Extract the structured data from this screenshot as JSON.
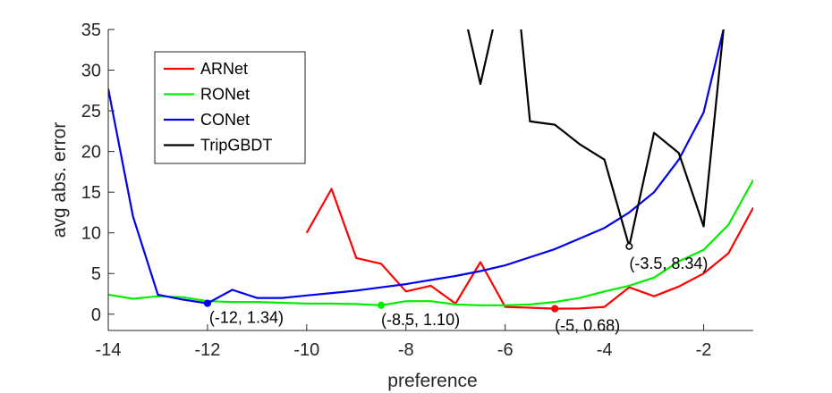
{
  "chart_data": {
    "type": "line",
    "xlabel": "preference",
    "ylabel": "avg abs. error",
    "xlim": [
      -14,
      -1
    ],
    "ylim": [
      -2,
      35
    ],
    "xticks": [
      -14,
      -12,
      -10,
      -8,
      -6,
      -4,
      -2
    ],
    "xtick_labels": [
      "-14",
      "-12",
      "-10",
      "-8",
      "-6",
      "-4",
      "-2"
    ],
    "yticks": [
      0,
      5,
      10,
      15,
      20,
      25,
      30,
      35
    ],
    "ytick_labels": [
      "0",
      "5",
      "10",
      "15",
      "20",
      "25",
      "30",
      "35"
    ],
    "grid": false,
    "legend_position": "top-left",
    "series": [
      {
        "name": "ARNet",
        "color": "#ff0000",
        "points": [
          [
            -10,
            10.0
          ],
          [
            -9.5,
            15.4
          ],
          [
            -9,
            6.9
          ],
          [
            -8.5,
            6.2
          ],
          [
            -8,
            2.8
          ],
          [
            -7.5,
            3.5
          ],
          [
            -7,
            1.3
          ],
          [
            -6.5,
            6.4
          ],
          [
            -6,
            0.9
          ],
          [
            -5.5,
            0.8
          ],
          [
            -5,
            0.68
          ],
          [
            -4.5,
            0.7
          ],
          [
            -4,
            0.9
          ],
          [
            -3.5,
            3.3
          ],
          [
            -3,
            2.2
          ],
          [
            -2.5,
            3.4
          ],
          [
            -2,
            5.0
          ],
          [
            -1.5,
            7.5
          ],
          [
            -1,
            13.1
          ]
        ]
      },
      {
        "name": "RONet",
        "color": "#00ee00",
        "points": [
          [
            -14,
            2.4
          ],
          [
            -13.5,
            1.9
          ],
          [
            -13,
            2.2
          ],
          [
            -12.5,
            2.1
          ],
          [
            -12,
            1.6
          ],
          [
            -11.5,
            1.5
          ],
          [
            -11,
            1.5
          ],
          [
            -10.5,
            1.4
          ],
          [
            -10,
            1.3
          ],
          [
            -9.5,
            1.3
          ],
          [
            -9,
            1.25
          ],
          [
            -8.5,
            1.1
          ],
          [
            -8,
            1.6
          ],
          [
            -7.5,
            1.6
          ],
          [
            -7,
            1.2
          ],
          [
            -6.5,
            1.1
          ],
          [
            -6,
            1.1
          ],
          [
            -5.5,
            1.2
          ],
          [
            -5,
            1.5
          ],
          [
            -4.5,
            2.0
          ],
          [
            -4,
            2.8
          ],
          [
            -3.5,
            3.5
          ],
          [
            -3,
            4.5
          ],
          [
            -2.5,
            6.5
          ],
          [
            -2,
            7.9
          ],
          [
            -1.5,
            11.0
          ],
          [
            -1,
            16.5
          ]
        ]
      },
      {
        "name": "CONet",
        "color": "#0000ee",
        "points": [
          [
            -14,
            27.7
          ],
          [
            -13.5,
            12.0
          ],
          [
            -13,
            2.4
          ],
          [
            -12.5,
            1.8
          ],
          [
            -12,
            1.34
          ],
          [
            -11.5,
            3.0
          ],
          [
            -11,
            2.0
          ],
          [
            -10.5,
            2.0
          ],
          [
            -10,
            2.3
          ],
          [
            -9.5,
            2.6
          ],
          [
            -9,
            2.9
          ],
          [
            -8.5,
            3.3
          ],
          [
            -8,
            3.7
          ],
          [
            -7.5,
            4.2
          ],
          [
            -7,
            4.7
          ],
          [
            -6.5,
            5.3
          ],
          [
            -6,
            6.0
          ],
          [
            -5.5,
            7.0
          ],
          [
            -5,
            8.0
          ],
          [
            -4.5,
            9.3
          ],
          [
            -4,
            10.6
          ],
          [
            -3.5,
            12.5
          ],
          [
            -3,
            15.0
          ],
          [
            -2.5,
            19.0
          ],
          [
            -2,
            24.8
          ],
          [
            -1.6,
            35.0
          ]
        ]
      },
      {
        "name": "TripGBDT",
        "color": "#000000",
        "points": [
          [
            -6.8,
            40.0
          ],
          [
            -6.75,
            35.0
          ],
          [
            -6.5,
            28.3
          ],
          [
            -6.25,
            35.0
          ],
          [
            -6.2,
            40.0
          ],
          [
            -5.75,
            40.0
          ],
          [
            -5.68,
            35.0
          ],
          [
            -5.5,
            23.7
          ],
          [
            -5,
            23.3
          ],
          [
            -4.5,
            20.9
          ],
          [
            -4,
            19.0
          ],
          [
            -3.5,
            8.34
          ],
          [
            -3,
            22.3
          ],
          [
            -2.5,
            19.8
          ],
          [
            -2,
            10.8
          ],
          [
            -1.6,
            35.0
          ],
          [
            -1.55,
            40.0
          ]
        ]
      }
    ],
    "annotations": [
      {
        "text": "(-12, 1.34)",
        "x": -12,
        "y": 1.34,
        "series": "CONet"
      },
      {
        "text": "(-8.5, 1.10)",
        "x": -8.5,
        "y": 1.1,
        "series": "RONet"
      },
      {
        "text": "(-5, 0.68)",
        "x": -5,
        "y": 0.68,
        "series": "ARNet"
      },
      {
        "text": "(-3.5, 8.34)",
        "x": -3.5,
        "y": 8.34,
        "series": "TripGBDT"
      }
    ]
  }
}
